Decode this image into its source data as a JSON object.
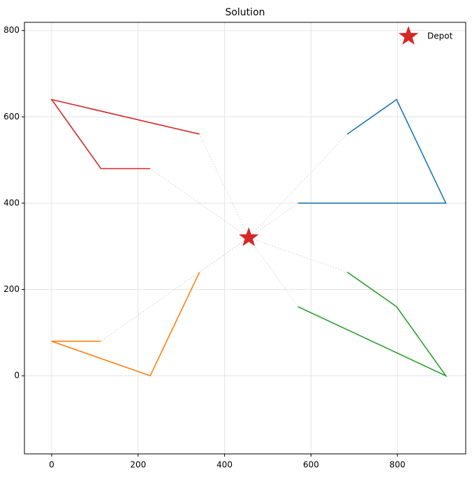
{
  "chart_data": {
    "type": "line",
    "title": "Solution",
    "xlim": [
      -63,
      958
    ],
    "ylim": [
      -181,
      819
    ],
    "xticks": [
      0,
      200,
      400,
      600,
      800
    ],
    "yticks": [
      0,
      200,
      400,
      600,
      800
    ],
    "grid": true,
    "legend": "upper right",
    "depot": {
      "name": "Depot",
      "x": 456,
      "y": 320,
      "color": "#d62728"
    },
    "series": [
      {
        "color": "#1f77b4",
        "x": [
          684,
          798,
          912,
          570
        ],
        "y": [
          560,
          640,
          400,
          400
        ]
      },
      {
        "color": "#d62728",
        "x": [
          342,
          0,
          114,
          228
        ],
        "y": [
          560,
          640,
          480,
          480
        ]
      },
      {
        "color": "#ff7f0e",
        "x": [
          342,
          228,
          0,
          114
        ],
        "y": [
          240,
          0,
          80,
          80
        ]
      },
      {
        "color": "#2ca02c",
        "x": [
          684,
          798,
          912,
          570
        ],
        "y": [
          240,
          160,
          0,
          160
        ]
      }
    ]
  }
}
